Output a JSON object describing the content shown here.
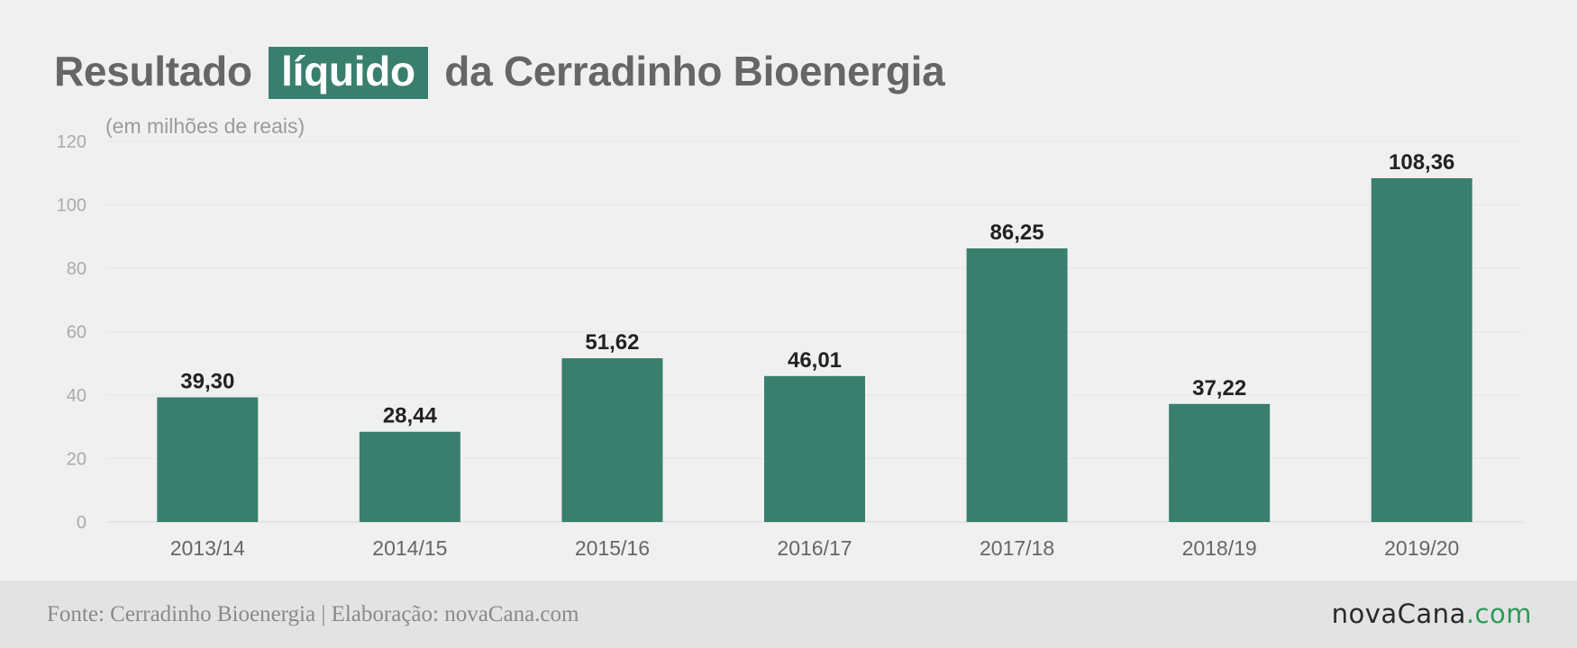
{
  "title": {
    "before": "Resultado",
    "highlight": "líquido",
    "after": "da Cerradinho Bioenergia"
  },
  "subtitle": "(em milhões de reais)",
  "colors": {
    "bar": "#38806d",
    "background": "#f0f0f0",
    "footer": "#e3e3e3",
    "logo_accent": "#2e9a58"
  },
  "chart_data": {
    "type": "bar",
    "title": "Resultado líquido da Cerradinho Bioenergia",
    "subtitle": "(em milhões de reais)",
    "categories": [
      "2013/14",
      "2014/15",
      "2015/16",
      "2016/17",
      "2017/18",
      "2018/19",
      "2019/20"
    ],
    "values": [
      39.3,
      28.44,
      51.62,
      46.01,
      86.25,
      37.22,
      108.36
    ],
    "value_labels": [
      "39,30",
      "28,44",
      "51,62",
      "46,01",
      "86,25",
      "37,22",
      "108,36"
    ],
    "ylim": [
      0,
      120
    ],
    "yticks": [
      0,
      20,
      40,
      60,
      80,
      100,
      120
    ],
    "grid": true,
    "legend": false
  },
  "footer": {
    "source": "Fonte: Cerradinho Bioenergia | Elaboração: novaCana.com",
    "logo_main": "novaCana",
    "logo_suffix": ".com"
  }
}
